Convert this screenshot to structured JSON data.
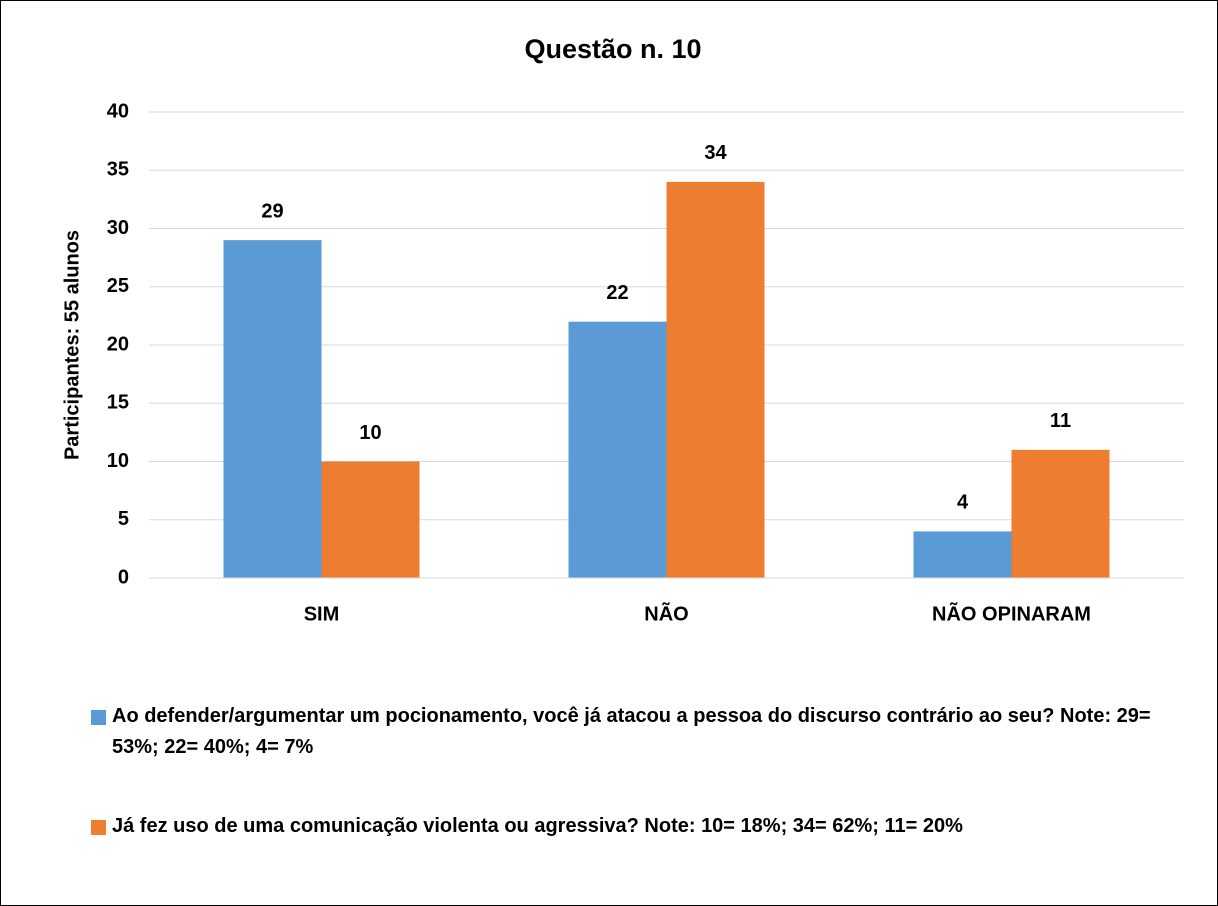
{
  "chart_data": {
    "type": "bar",
    "title": "Questão n. 10",
    "y_label": "Participantes: 55 alunos",
    "categories": [
      "SIM",
      "NÃO",
      "NÃO OPINARAM"
    ],
    "series": [
      {
        "name": "Ao defender/argumentar um pocionamento, você já atacou a pessoa do discurso contrário ao seu?  Note: 29= 53%; 22= 40%; 4= 7%",
        "color": "#5b9bd5",
        "values": [
          29,
          22,
          4
        ]
      },
      {
        "name": "Já fez uso de uma comunicação violenta ou agressiva? Note: 10= 18%; 34= 62%; 11= 20%",
        "color": "#ed7d31",
        "values": [
          10,
          34,
          11
        ]
      }
    ],
    "ylim": [
      0,
      40
    ],
    "yticks": [
      0,
      5,
      10,
      15,
      20,
      25,
      30,
      35,
      40
    ],
    "grid": true,
    "legend": "bottom"
  }
}
